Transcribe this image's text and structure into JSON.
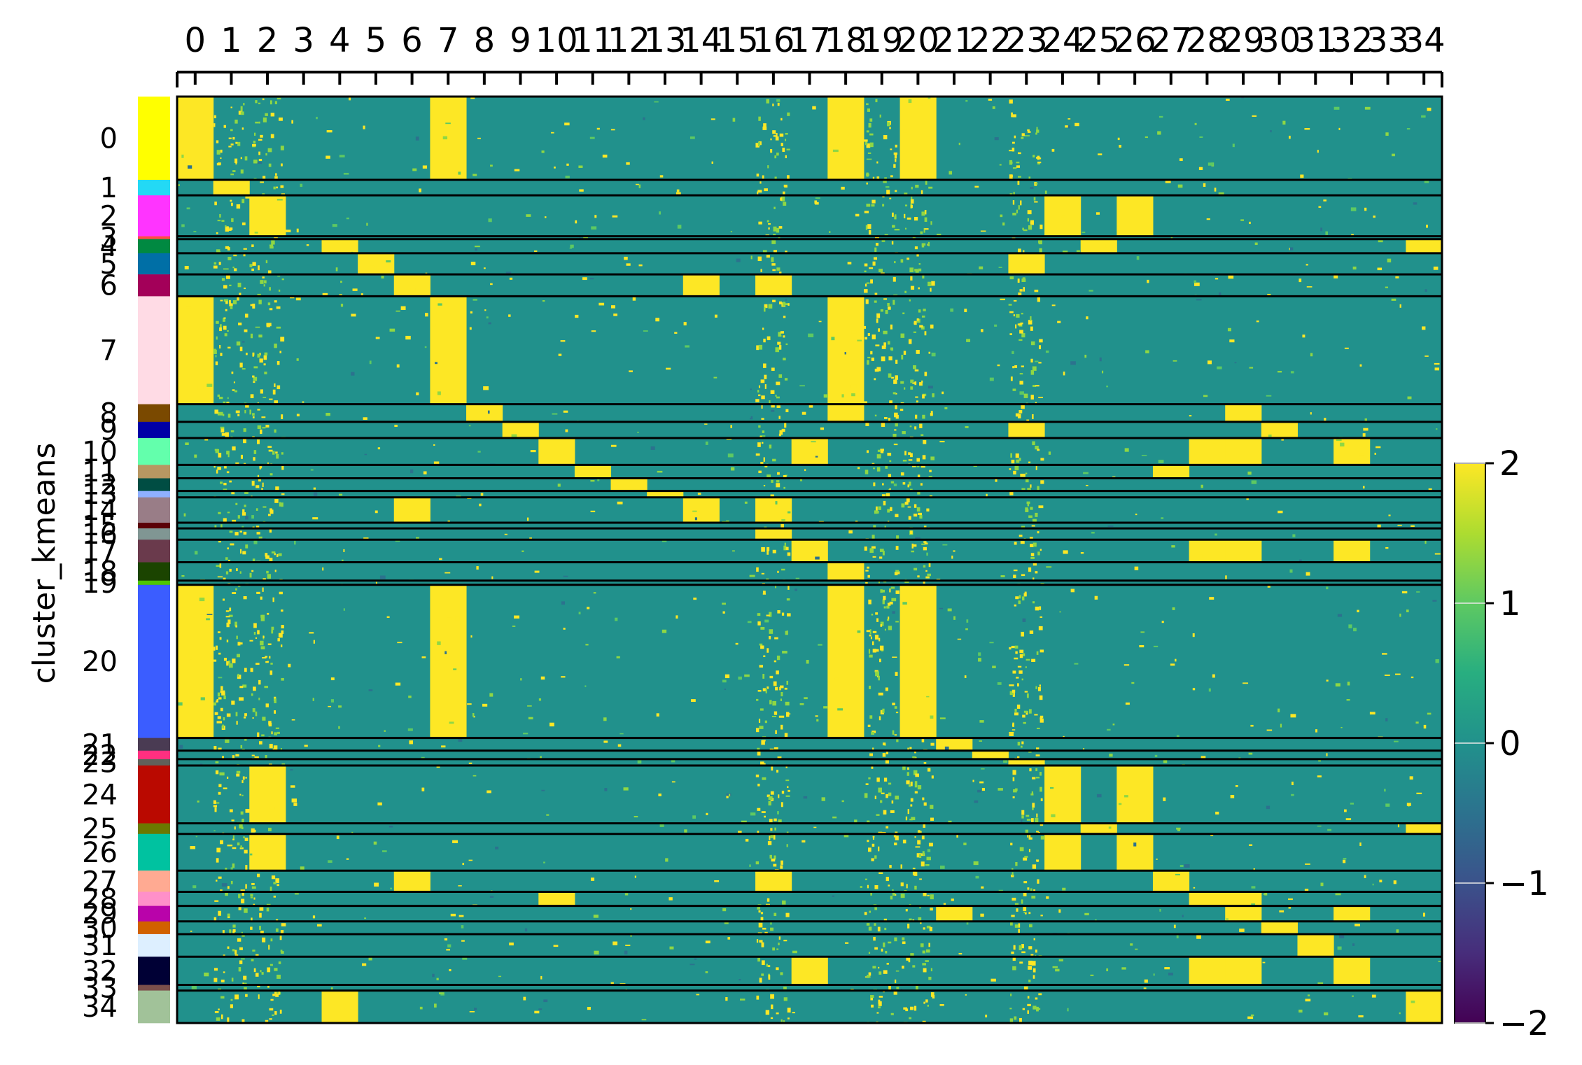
{
  "chart_data": {
    "type": "heatmap",
    "ylabel": "cluster_kmeans",
    "columns": [
      "0",
      "1",
      "2",
      "3",
      "4",
      "5",
      "6",
      "7",
      "8",
      "9",
      "10",
      "11",
      "12",
      "13",
      "14",
      "15",
      "16",
      "17",
      "18",
      "19",
      "20",
      "21",
      "22",
      "23",
      "24",
      "25",
      "26",
      "27",
      "28",
      "29",
      "30",
      "31",
      "32",
      "33",
      "34"
    ],
    "row_groups": [
      {
        "label": "0",
        "cells": 118,
        "color": "#ffff00"
      },
      {
        "label": "1",
        "cells": 22,
        "color": "#23d9f5"
      },
      {
        "label": "2",
        "cells": 58,
        "color": "#ff34ff"
      },
      {
        "label": "3",
        "cells": 4,
        "color": "#ff4a46"
      },
      {
        "label": "4",
        "cells": 20,
        "color": "#008941"
      },
      {
        "label": "5",
        "cells": 30,
        "color": "#006fa6"
      },
      {
        "label": "6",
        "cells": 31,
        "color": "#a30059"
      },
      {
        "label": "7",
        "cells": 153,
        "color": "#ffdbe5"
      },
      {
        "label": "8",
        "cells": 25,
        "color": "#7a4900"
      },
      {
        "label": "9",
        "cells": 23,
        "color": "#0000a6"
      },
      {
        "label": "10",
        "cells": 38,
        "color": "#63ffac"
      },
      {
        "label": "11",
        "cells": 19,
        "color": "#b79762"
      },
      {
        "label": "12",
        "cells": 18,
        "color": "#004d43"
      },
      {
        "label": "13",
        "cells": 9,
        "color": "#8fb0ff"
      },
      {
        "label": "14",
        "cells": 36,
        "color": "#997d87"
      },
      {
        "label": "15",
        "cells": 8,
        "color": "#5a0007"
      },
      {
        "label": "16",
        "cells": 16,
        "color": "#809693"
      },
      {
        "label": "17",
        "cells": 32,
        "color": "#6a3a4c"
      },
      {
        "label": "18",
        "cells": 26,
        "color": "#1b4400"
      },
      {
        "label": "19",
        "cells": 6,
        "color": "#4fc601"
      },
      {
        "label": "20",
        "cells": 217,
        "color": "#3b5dff"
      },
      {
        "label": "21",
        "cells": 18,
        "color": "#4a3b53"
      },
      {
        "label": "22",
        "cells": 12,
        "color": "#ff2f80"
      },
      {
        "label": "23",
        "cells": 9,
        "color": "#61615a"
      },
      {
        "label": "24",
        "cells": 82,
        "color": "#ba0900"
      },
      {
        "label": "25",
        "cells": 15,
        "color": "#6b7900"
      },
      {
        "label": "26",
        "cells": 52,
        "color": "#00c2a0"
      },
      {
        "label": "27",
        "cells": 30,
        "color": "#ffaa92"
      },
      {
        "label": "28",
        "cells": 20,
        "color": "#ff90c9"
      },
      {
        "label": "29",
        "cells": 22,
        "color": "#b903aa"
      },
      {
        "label": "30",
        "cells": 18,
        "color": "#d16100"
      },
      {
        "label": "31",
        "cells": 32,
        "color": "#ddefff"
      },
      {
        "label": "32",
        "cells": 40,
        "color": "#000035"
      },
      {
        "label": "33",
        "cells": 8,
        "color": "#7b4f4b"
      },
      {
        "label": "34",
        "cells": 46,
        "color": "#a1c299"
      }
    ],
    "high_columns_by_group": [
      [
        0,
        7,
        18,
        20
      ],
      [
        1
      ],
      [
        2,
        24,
        26
      ],
      [],
      [
        4,
        25,
        34
      ],
      [
        5,
        23
      ],
      [
        6,
        14,
        16
      ],
      [
        0,
        7,
        18
      ],
      [
        8,
        18,
        29
      ],
      [
        9,
        23,
        30
      ],
      [
        10,
        17,
        28,
        29,
        32
      ],
      [
        11,
        27
      ],
      [
        12
      ],
      [
        13
      ],
      [
        6,
        14,
        16
      ],
      [],
      [
        16
      ],
      [
        17,
        28,
        29,
        32
      ],
      [
        18
      ],
      [],
      [
        0,
        7,
        18,
        20
      ],
      [
        21
      ],
      [
        22
      ],
      [
        23
      ],
      [
        2,
        24,
        26
      ],
      [
        25,
        34
      ],
      [
        2,
        24,
        26
      ],
      [
        6,
        16,
        27
      ],
      [
        10,
        28,
        29
      ],
      [
        21,
        29,
        32
      ],
      [
        30
      ],
      [
        31
      ],
      [
        17,
        28,
        29,
        32
      ],
      [],
      [
        4,
        34
      ]
    ],
    "colorbar": {
      "min": -2,
      "max": 2,
      "ticks": [
        -2,
        -1,
        0,
        1,
        2
      ],
      "colormap": "viridis"
    },
    "grid": false
  },
  "tick_labels": {
    "colorbar": [
      "−2",
      "−1",
      "0",
      "1",
      "2"
    ]
  }
}
